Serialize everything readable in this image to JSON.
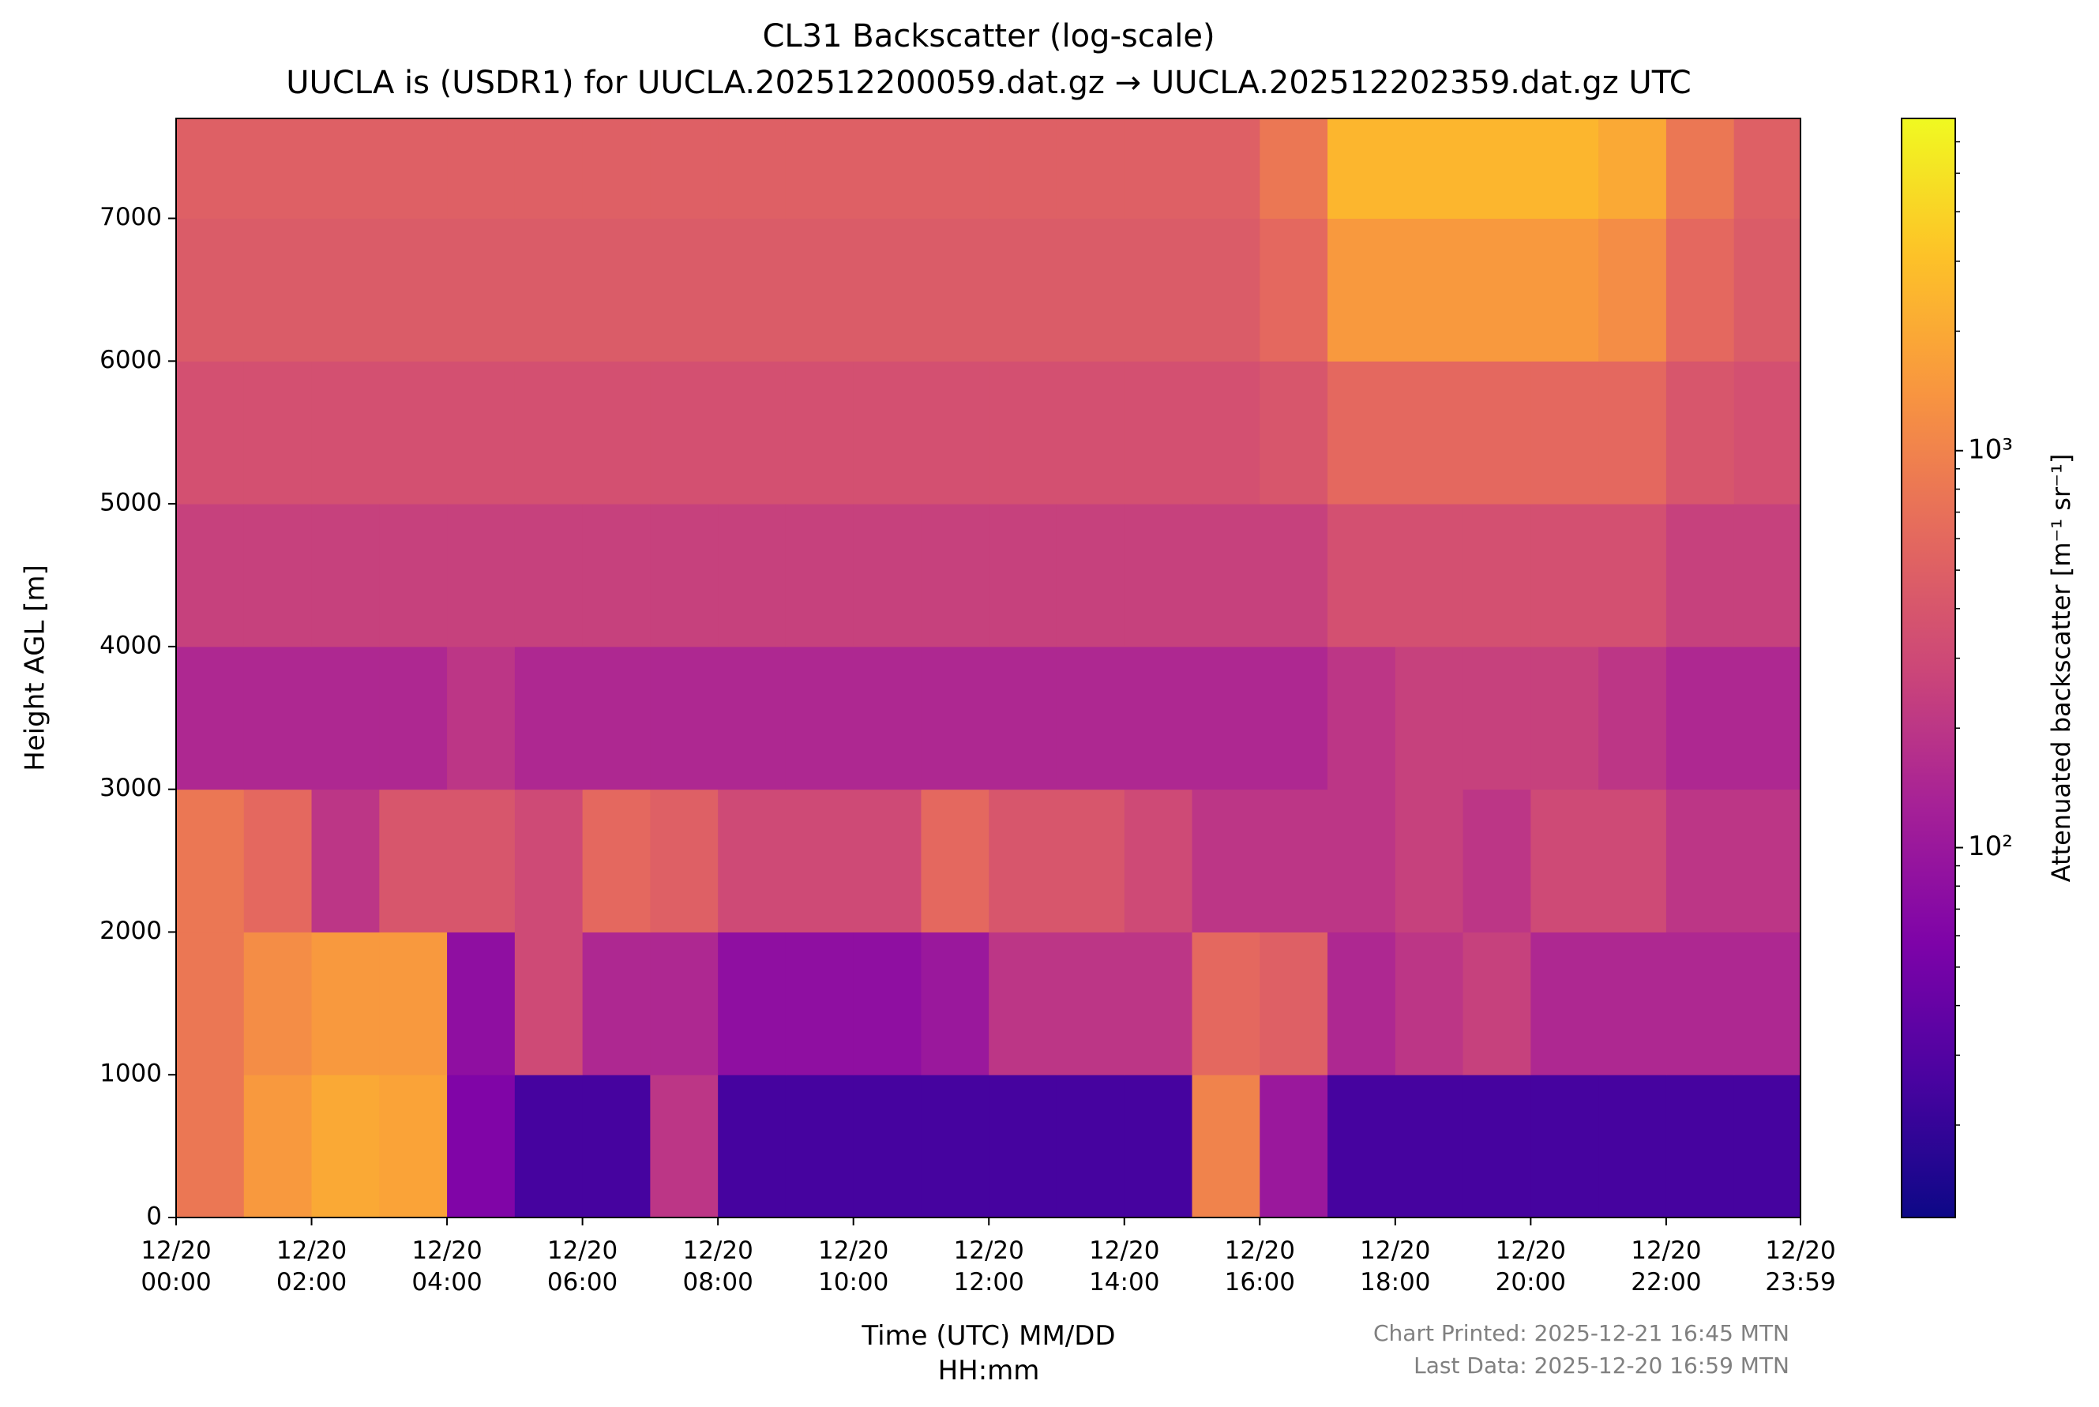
{
  "chart_data": {
    "type": "heatmap",
    "title": "CL31 Backscatter (log-scale)",
    "subtitle": "UUCLA is (USDR1) for UUCLA.202512200059.dat.gz → UUCLA.202512202359.dat.gz UTC",
    "xlabel": "Time (UTC) MM/DD\nHH:mm",
    "ylabel": "Height AGL [m]",
    "colorbar_label": "Attenuated backscatter [m⁻¹ sr⁻¹]",
    "footer_printed": "Chart Printed: 2025-12-21 16:45 MTN",
    "footer_last_data": "Last Data: 2025-12-20 16:59 MTN",
    "colormap": "plasma",
    "color_scale": "log",
    "xlim": [
      "12/20 00:00",
      "12/20 23:59"
    ],
    "xticks": [
      {
        "value": "12/20 00:00",
        "label": "12/20\n00:00"
      },
      {
        "value": "12/20 02:00",
        "label": "12/20\n02:00"
      },
      {
        "value": "12/20 04:00",
        "label": "12/20\n04:00"
      },
      {
        "value": "12/20 06:00",
        "label": "12/20\n06:00"
      },
      {
        "value": "12/20 08:00",
        "label": "12/20\n08:00"
      },
      {
        "value": "12/20 10:00",
        "label": "12/20\n10:00"
      },
      {
        "value": "12/20 12:00",
        "label": "12/20\n12:00"
      },
      {
        "value": "12/20 14:00",
        "label": "12/20\n14:00"
      },
      {
        "value": "12/20 16:00",
        "label": "12/20\n16:00"
      },
      {
        "value": "12/20 18:00",
        "label": "12/20\n18:00"
      },
      {
        "value": "12/20 20:00",
        "label": "12/20\n20:00"
      },
      {
        "value": "12/20 22:00",
        "label": "12/20\n22:00"
      },
      {
        "value": "12/20 23:59",
        "label": "12/20\n23:59"
      }
    ],
    "ylim": [
      0,
      7700
    ],
    "yticks": [
      0,
      1000,
      2000,
      3000,
      4000,
      5000,
      6000,
      7000
    ],
    "clim": [
      11.7,
      6870
    ],
    "cticks": [
      {
        "value": 100,
        "label": "10²"
      },
      {
        "value": 1000,
        "label": "10³"
      }
    ],
    "cticks_minor": [
      20,
      30,
      40,
      50,
      60,
      70,
      80,
      90,
      200,
      300,
      400,
      500,
      600,
      700,
      800,
      900,
      2000,
      3000,
      4000,
      5000,
      6000
    ],
    "x": [
      "12/20 00:00",
      "12/20 01:00",
      "12/20 02:00",
      "12/20 03:00",
      "12/20 04:00",
      "12/20 05:00",
      "12/20 06:00",
      "12/20 07:00",
      "12/20 08:00",
      "12/20 09:00",
      "12/20 10:00",
      "12/20 11:00",
      "12/20 12:00",
      "12/20 13:00",
      "12/20 14:00",
      "12/20 15:00",
      "12/20 16:00",
      "12/20 17:00",
      "12/20 18:00",
      "12/20 19:00",
      "12/20 20:00",
      "12/20 21:00",
      "12/20 22:00",
      "12/20 23:00",
      "12/20 23:59"
    ],
    "y": [
      0,
      1000,
      2000,
      3000,
      4000,
      5000,
      6000,
      7000,
      7700
    ],
    "z": [
      [
        800,
        1500,
        2000,
        1800,
        60,
        25,
        25,
        200,
        25,
        25,
        25,
        25,
        25,
        25,
        25,
        1000,
        100,
        25,
        25,
        25,
        25,
        25,
        25,
        25
      ],
      [
        800,
        1200,
        1500,
        1500,
        80,
        300,
        150,
        150,
        80,
        80,
        80,
        100,
        200,
        200,
        200,
        600,
        500,
        150,
        200,
        250,
        150,
        150,
        150,
        150
      ],
      [
        800,
        600,
        200,
        400,
        400,
        300,
        600,
        500,
        300,
        300,
        300,
        600,
        400,
        400,
        300,
        200,
        200,
        200,
        250,
        200,
        300,
        300,
        200,
        200
      ],
      [
        150,
        150,
        150,
        150,
        200,
        150,
        150,
        150,
        150,
        150,
        150,
        150,
        150,
        150,
        150,
        150,
        150,
        200,
        250,
        250,
        250,
        200,
        150,
        150
      ],
      [
        250,
        250,
        250,
        250,
        250,
        250,
        250,
        250,
        250,
        250,
        250,
        250,
        250,
        250,
        250,
        250,
        250,
        350,
        350,
        350,
        350,
        350,
        250,
        250
      ],
      [
        350,
        350,
        350,
        350,
        350,
        350,
        350,
        350,
        350,
        350,
        350,
        350,
        350,
        350,
        350,
        350,
        400,
        600,
        600,
        600,
        600,
        600,
        400,
        350
      ],
      [
        450,
        450,
        450,
        450,
        450,
        450,
        450,
        450,
        450,
        450,
        450,
        450,
        450,
        450,
        450,
        450,
        600,
        1500,
        1500,
        1500,
        1500,
        1200,
        600,
        450
      ],
      [
        500,
        500,
        500,
        500,
        500,
        500,
        500,
        500,
        500,
        500,
        500,
        500,
        500,
        500,
        500,
        500,
        800,
        2500,
        2500,
        2500,
        2500,
        2000,
        800,
        500
      ]
    ]
  }
}
